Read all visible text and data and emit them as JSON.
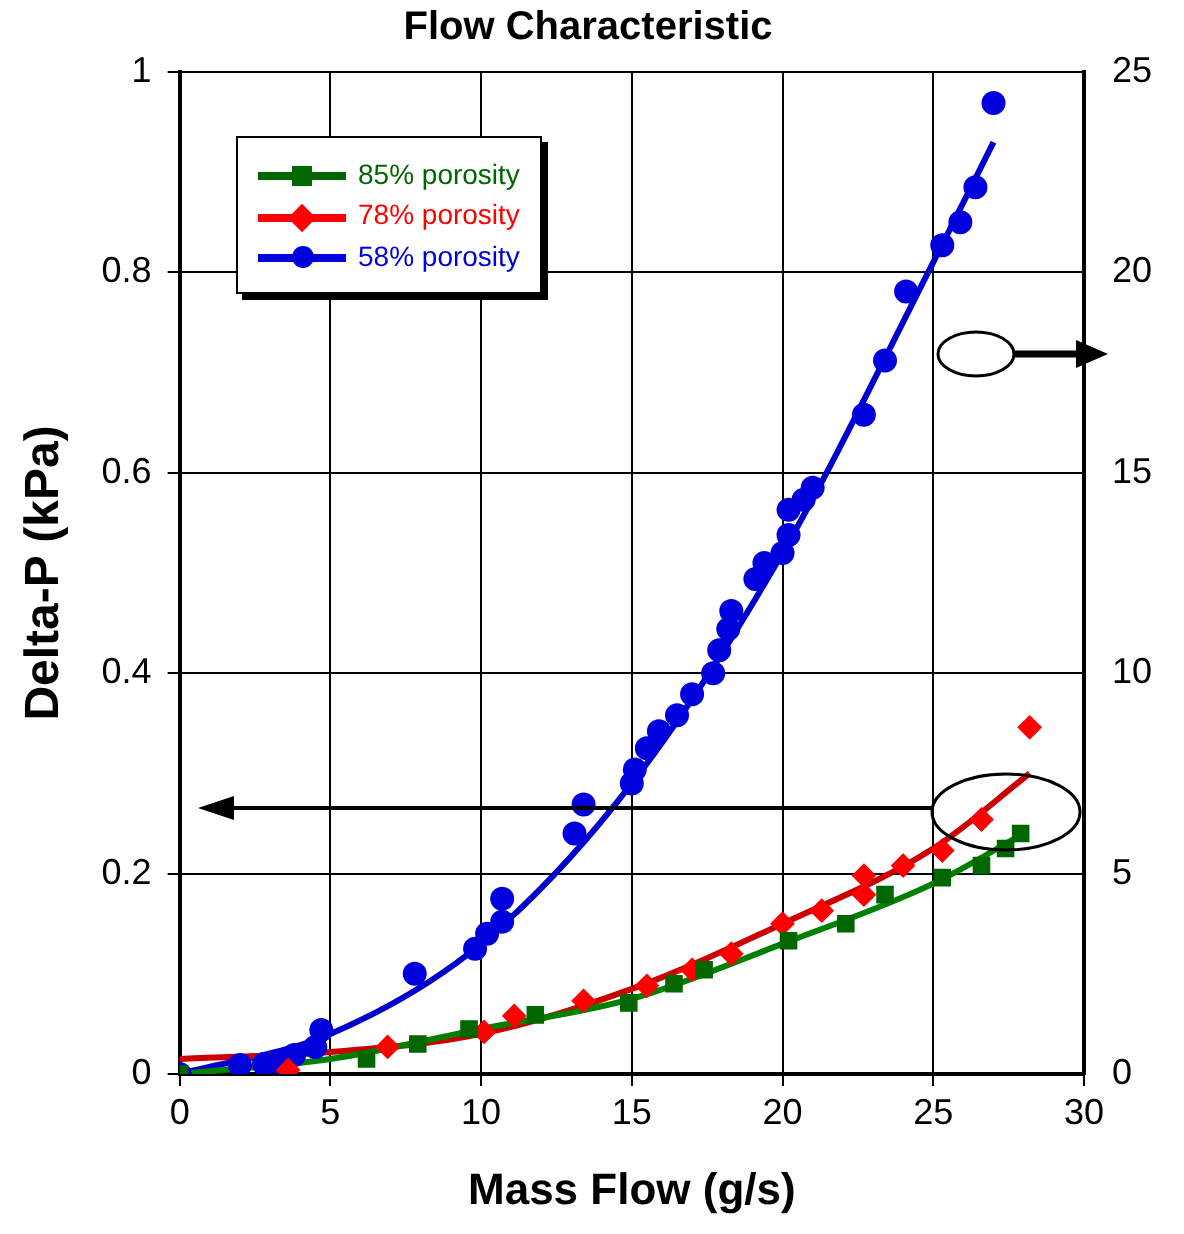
{
  "chart_data": {
    "type": "scatter",
    "title": "Flow Characteristic",
    "xlabel": "Mass Flow (g/s)",
    "ylabel": "Delta-P (kPa)",
    "xlim": [
      0,
      30
    ],
    "xticks": [
      0,
      5,
      10,
      15,
      20,
      25,
      30
    ],
    "ylim": [
      0,
      1
    ],
    "yticks": [
      0,
      0.2,
      0.4,
      0.6,
      0.8,
      1
    ],
    "y2lim": [
      0,
      25
    ],
    "y2ticks": [
      0,
      5,
      10,
      15,
      20,
      25
    ],
    "grid": true,
    "legend": "top left",
    "series": [
      {
        "name": "85% porosity",
        "type": "scatter",
        "marker": "square",
        "color": "#006600",
        "x": [
          0,
          6.2,
          7.9,
          9.6,
          11.8,
          14.9,
          16.4,
          17.4,
          20.2,
          22.1,
          23.4,
          25.3,
          26.6,
          27.4,
          27.9
        ],
        "values": [
          0,
          0.015,
          0.03,
          0.045,
          0.059,
          0.071,
          0.09,
          0.104,
          0.133,
          0.15,
          0.179,
          0.196,
          0.208,
          0.225,
          0.24
        ]
      },
      {
        "name": "78% porosity",
        "type": "scatter",
        "marker": "diamond",
        "color": "#ff0000",
        "x": [
          3.6,
          6.9,
          10.1,
          11.1,
          13.4,
          15.5,
          17,
          18.3,
          20,
          21.3,
          22.7,
          22.7,
          24,
          25.3,
          26.6,
          28.2
        ],
        "values": [
          0.004,
          0.027,
          0.042,
          0.058,
          0.073,
          0.088,
          0.104,
          0.12,
          0.15,
          0.163,
          0.179,
          0.198,
          0.208,
          0.223,
          0.254,
          0.346
        ]
      },
      {
        "name": "58% porosity",
        "type": "scatter",
        "marker": "circle",
        "color": "#0000dd",
        "x": [
          0,
          2,
          2.8,
          3.3,
          3.8,
          4.5,
          4.7,
          7.8,
          9.8,
          10.2,
          10.7,
          10.7,
          13.1,
          13.4,
          15,
          15.1,
          15.5,
          15.9,
          16.5,
          17,
          17.7,
          17.9,
          18.2,
          18.3,
          19.1,
          19.4,
          20,
          20.2,
          20.2,
          20.7,
          21,
          22.7,
          23.4,
          24.1,
          25.3,
          25.9,
          26.4,
          27
        ],
        "values": [
          0,
          0.009,
          0.01,
          0.012,
          0.019,
          0.027,
          0.044,
          0.1,
          0.125,
          0.14,
          0.152,
          0.175,
          0.24,
          0.269,
          0.29,
          0.304,
          0.325,
          0.342,
          0.358,
          0.379,
          0.4,
          0.423,
          0.444,
          0.462,
          0.494,
          0.51,
          0.52,
          0.538,
          0.563,
          0.573,
          0.585,
          0.658,
          0.712,
          0.781,
          0.827,
          0.85,
          0.885,
          0.969
        ]
      },
      {
        "type": "line",
        "marker": "none",
        "color": "#008000",
        "x": [
          0,
          5,
          10,
          15,
          20,
          25,
          28
        ],
        "values": [
          0,
          0.015,
          0.045,
          0.075,
          0.13,
          0.19,
          0.24
        ]
      },
      {
        "type": "line",
        "marker": "none",
        "color": "#cc0000",
        "x": [
          0,
          5,
          10,
          15,
          20,
          25,
          28.2
        ],
        "values": [
          0.015,
          0.022,
          0.04,
          0.085,
          0.15,
          0.225,
          0.3
        ]
      },
      {
        "type": "line",
        "marker": "none",
        "color": "#0000cc",
        "x": [
          0,
          5,
          10,
          15,
          20,
          25,
          27
        ],
        "values": [
          0,
          0.04,
          0.13,
          0.29,
          0.52,
          0.81,
          0.93
        ]
      }
    ]
  }
}
